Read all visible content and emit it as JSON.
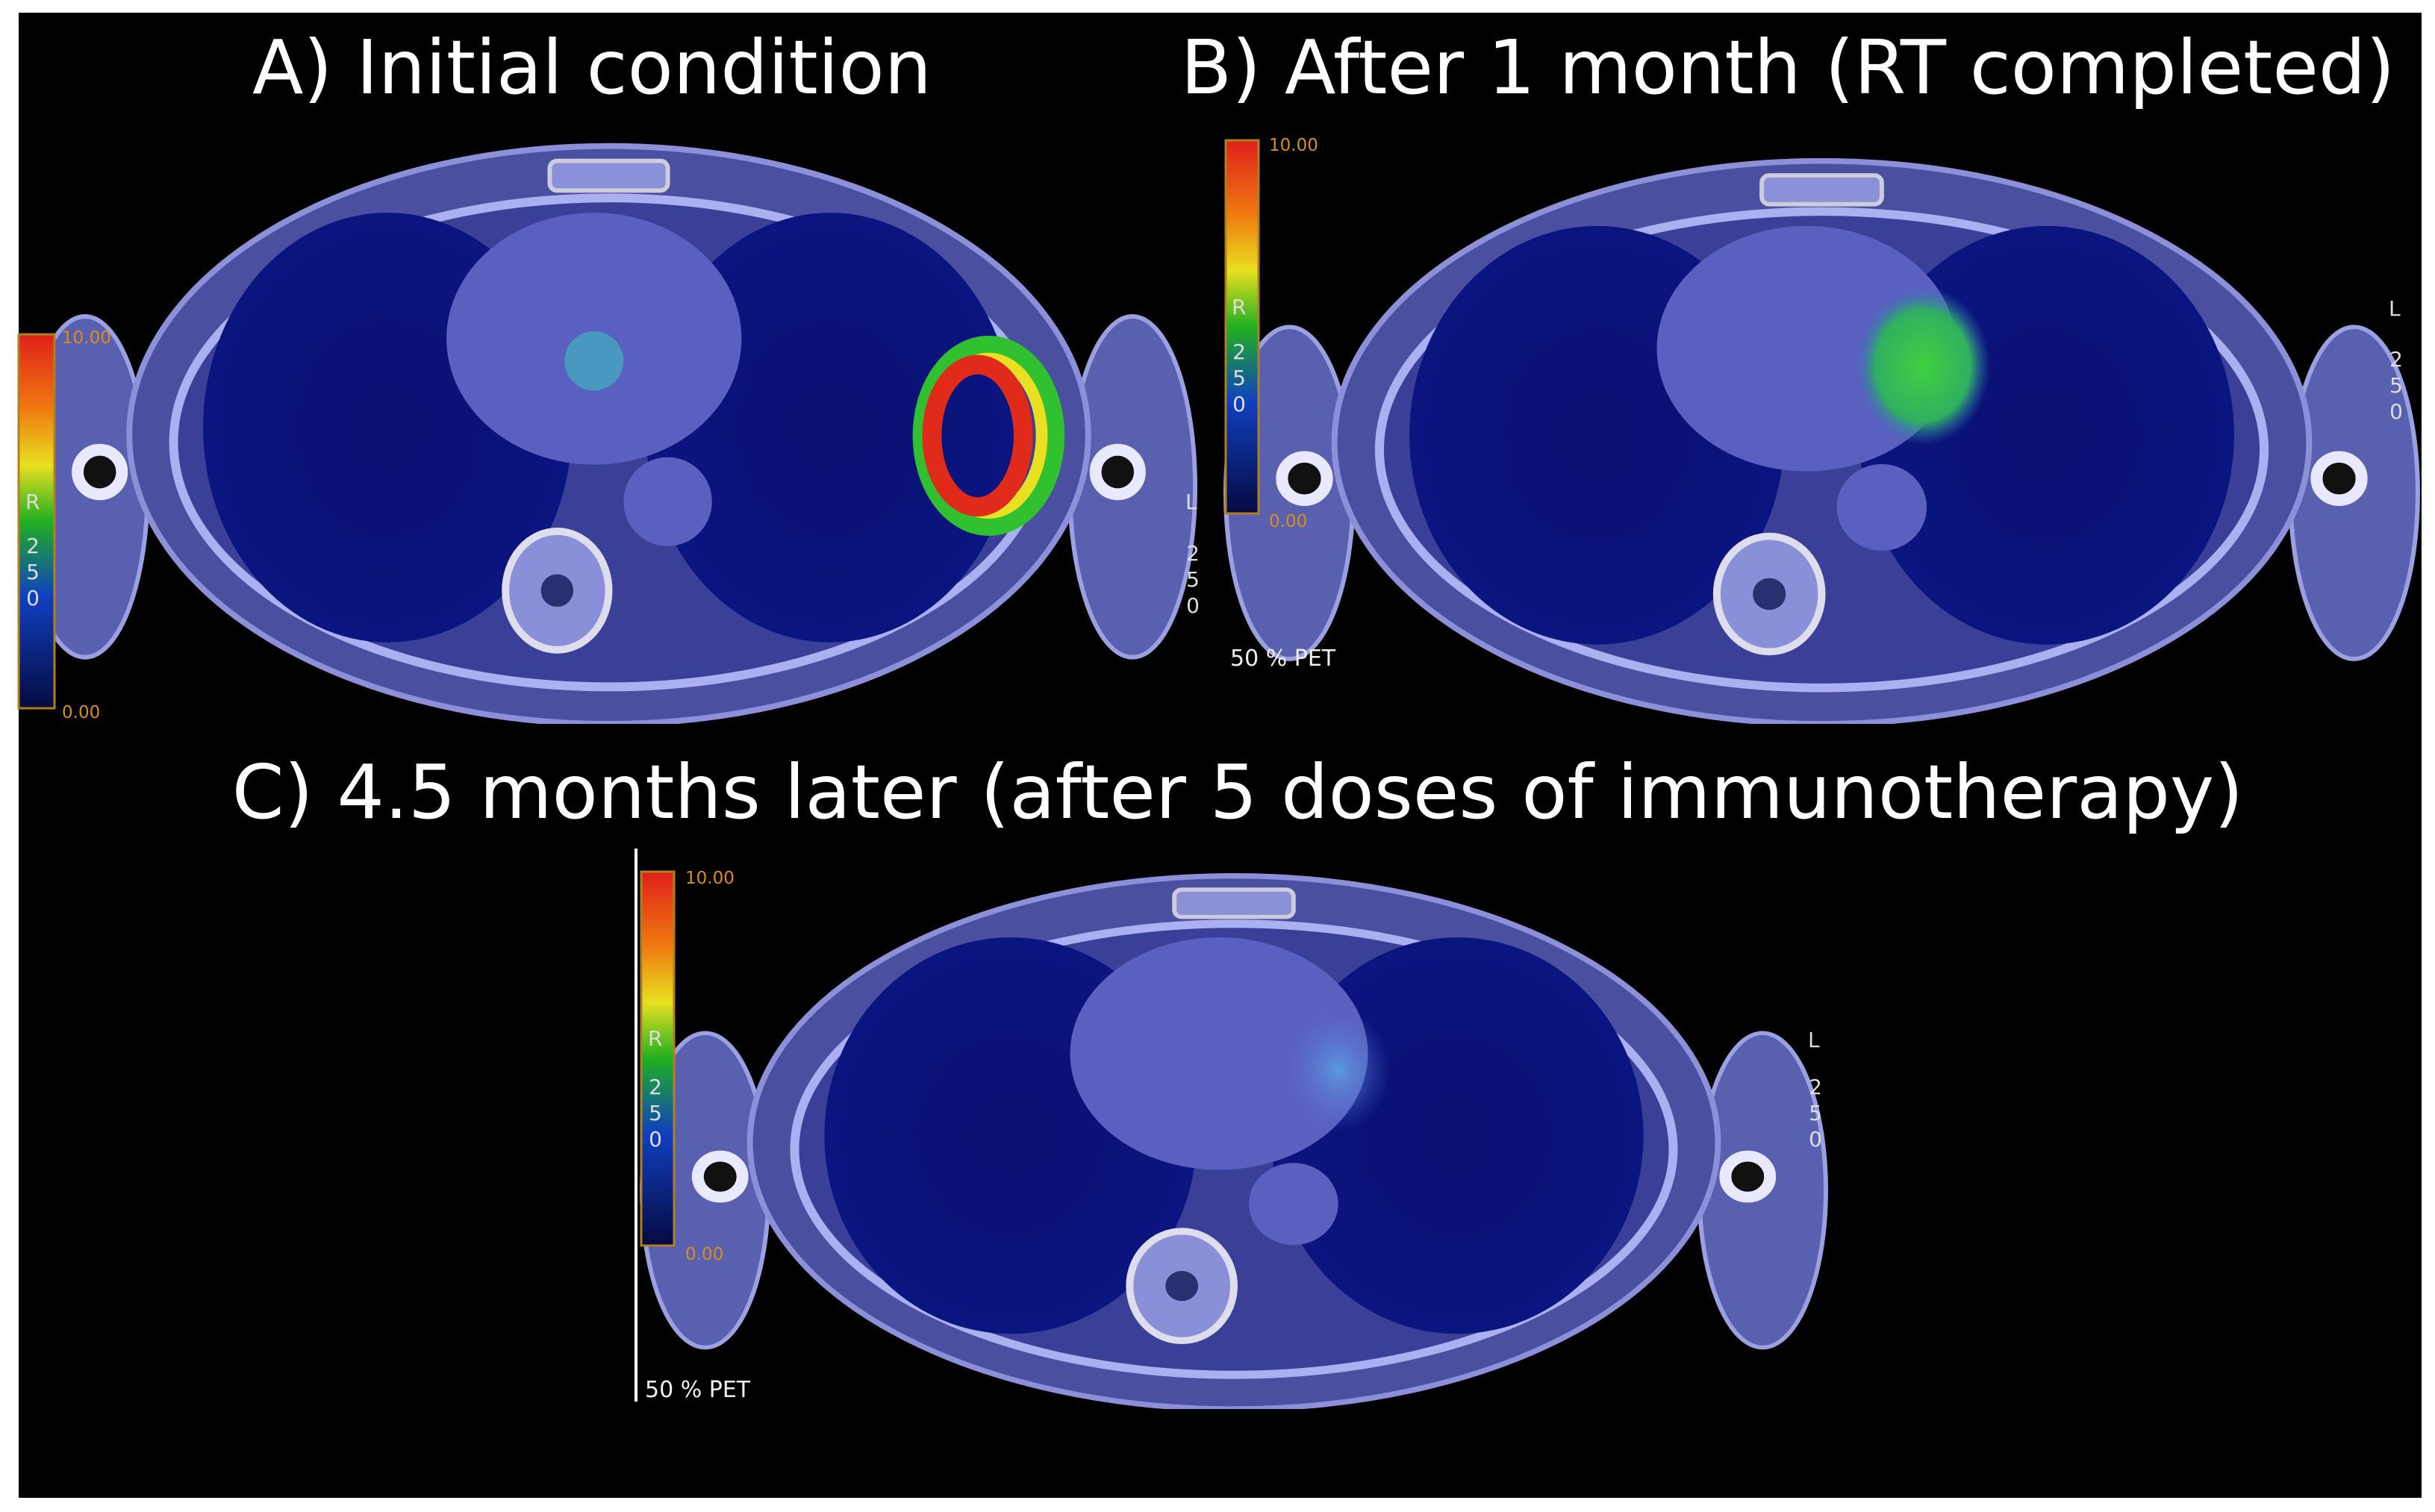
{
  "panels": [
    {
      "title": "A) Initial condition",
      "scale_max": "10.00",
      "scale_min": "0.00",
      "r_label": "R",
      "r_number": "250",
      "l_label": "L",
      "l_number": "250"
    },
    {
      "title": "B) After 1 month (RT completed)",
      "scale_max": "10.00",
      "scale_min": "0.00",
      "r_label": "R",
      "r_number": "250",
      "l_label": "L",
      "l_number": "250",
      "pet_label": "50 % PET"
    },
    {
      "title": "C) 4.5 months later (after 5 doses of immunotherapy)",
      "scale_max": "10.00",
      "scale_min": "0.00",
      "r_label": "R",
      "r_number": "250",
      "l_label": "L",
      "l_number": "250",
      "pet_label": "50 % PET"
    }
  ]
}
